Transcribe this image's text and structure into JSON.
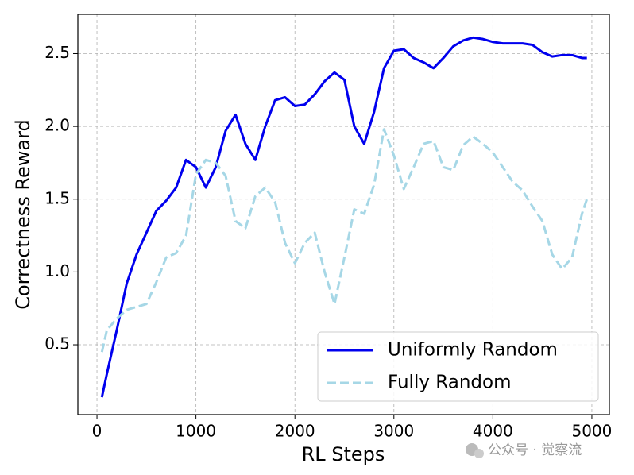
{
  "chart_data": {
    "type": "line",
    "x_label": "RL Steps",
    "y_label": "Correctness Reward",
    "x": [
      50,
      100,
      200,
      300,
      400,
      500,
      600,
      700,
      800,
      900,
      1000,
      1100,
      1200,
      1300,
      1400,
      1500,
      1600,
      1700,
      1800,
      1900,
      2000,
      2100,
      2200,
      2300,
      2400,
      2500,
      2600,
      2700,
      2800,
      2900,
      3000,
      3100,
      3200,
      3300,
      3400,
      3500,
      3600,
      3700,
      3800,
      3900,
      4000,
      4100,
      4200,
      4300,
      4400,
      4500,
      4600,
      4700,
      4800,
      4900,
      4950
    ],
    "series": [
      {
        "name": "Uniformly Random",
        "color": "#0000ee",
        "dash": false,
        "values": [
          0.14,
          0.3,
          0.6,
          0.92,
          1.12,
          1.27,
          1.42,
          1.49,
          1.58,
          1.77,
          1.72,
          1.58,
          1.72,
          1.97,
          2.08,
          1.88,
          1.77,
          2.0,
          2.18,
          2.2,
          2.14,
          2.15,
          2.22,
          2.31,
          2.37,
          2.32,
          2.0,
          1.88,
          2.1,
          2.4,
          2.52,
          2.53,
          2.47,
          2.44,
          2.4,
          2.47,
          2.55,
          2.59,
          2.61,
          2.6,
          2.58,
          2.57,
          2.57,
          2.57,
          2.56,
          2.51,
          2.48,
          2.49,
          2.49,
          2.47,
          2.47
        ]
      },
      {
        "name": "Fully Random",
        "color": "#a6d7e6",
        "dash": true,
        "values": [
          0.45,
          0.6,
          0.68,
          0.74,
          0.76,
          0.78,
          0.93,
          1.1,
          1.13,
          1.25,
          1.67,
          1.77,
          1.75,
          1.66,
          1.35,
          1.3,
          1.52,
          1.58,
          1.48,
          1.2,
          1.06,
          1.2,
          1.27,
          1.0,
          0.78,
          1.1,
          1.43,
          1.4,
          1.6,
          1.98,
          1.8,
          1.57,
          1.72,
          1.88,
          1.9,
          1.72,
          1.7,
          1.87,
          1.93,
          1.88,
          1.82,
          1.72,
          1.62,
          1.56,
          1.45,
          1.35,
          1.12,
          1.02,
          1.1,
          1.4,
          1.5
        ]
      }
    ],
    "xlim": [
      -193,
      5177
    ],
    "ylim": [
      0.02,
      2.77
    ],
    "xticks": [
      0,
      1000,
      2000,
      3000,
      4000,
      5000
    ],
    "yticks": [
      {
        "value": 0.5,
        "label": "0.5"
      },
      {
        "value": 1.0,
        "label": "1.0"
      },
      {
        "value": 1.5,
        "label": "1.5"
      },
      {
        "value": 2.0,
        "label": "2.0"
      },
      {
        "value": 2.5,
        "label": "2.5"
      }
    ],
    "grid": true,
    "legend": "lower right"
  },
  "watermark": "公众号 · 觉察流"
}
